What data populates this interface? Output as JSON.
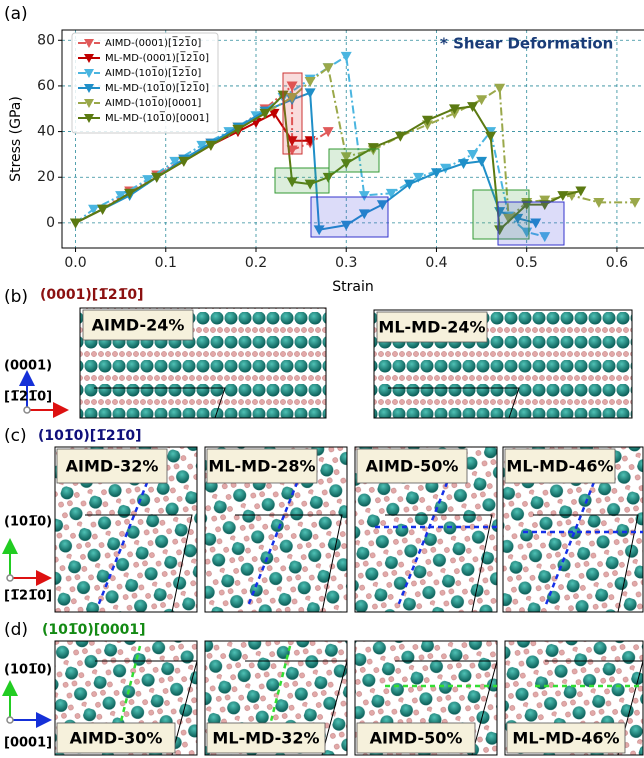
{
  "chart_data": {
    "type": "line",
    "panel_label": "(a)",
    "annotation": "* Shear Deformation",
    "x_label": "Strain",
    "y_label": "Stress (GPa)",
    "xlim": [
      -0.015,
      0.63
    ],
    "ylim": [
      -11,
      84.5
    ],
    "xticks": [
      {
        "value": 0,
        "label": "0.0"
      },
      0.1,
      0.2,
      0.3,
      0.4,
      0.5,
      0.6
    ],
    "yticks": [
      0,
      20,
      40,
      60,
      80
    ],
    "grid": true,
    "legend": "upper left",
    "series": [
      {
        "name": "AIMD-(0001)[1̅21̅0]",
        "color": "#e05a5a",
        "linestyle": "dashdot",
        "x": [
          0,
          0.03,
          0.06,
          0.09,
          0.12,
          0.15,
          0.18,
          0.21,
          0.24,
          0.24,
          0.26,
          0.28
        ],
        "values": [
          0,
          6,
          14,
          21,
          28,
          35,
          42,
          50,
          60,
          32,
          35,
          40
        ]
      },
      {
        "name": "ML-MD-(0001)[1̅21̅0]",
        "color": "#c00000",
        "linestyle": "solid",
        "x": [
          0,
          0.03,
          0.06,
          0.09,
          0.12,
          0.15,
          0.18,
          0.2,
          0.22,
          0.24,
          0.26
        ],
        "values": [
          0,
          6,
          13,
          20,
          27,
          34,
          40,
          44,
          48,
          36,
          36
        ]
      },
      {
        "name": "AIMD-(101̅0)[1̅21̅0]",
        "color": "#4ab5e0",
        "linestyle": "dashdot",
        "x": [
          0,
          0.02,
          0.05,
          0.08,
          0.11,
          0.14,
          0.17,
          0.2,
          0.23,
          0.26,
          0.28,
          0.3,
          0.32,
          0.35,
          0.38,
          0.41,
          0.44,
          0.46,
          0.48,
          0.5,
          0.52
        ],
        "values": [
          0,
          6,
          12,
          19,
          27,
          34,
          40,
          47,
          55,
          63,
          68,
          73,
          12,
          13,
          20,
          24,
          30,
          40,
          3,
          -4,
          -6
        ]
      },
      {
        "name": "ML-MD-(101̅0)[1̅21̅0]",
        "color": "#1f8fc8",
        "linestyle": "solid",
        "x": [
          0,
          0.03,
          0.06,
          0.09,
          0.12,
          0.15,
          0.18,
          0.21,
          0.24,
          0.26,
          0.27,
          0.3,
          0.32,
          0.34,
          0.37,
          0.4,
          0.43,
          0.45,
          0.47,
          0.49,
          0.51
        ],
        "values": [
          0,
          6,
          12,
          20,
          28,
          35,
          42,
          49,
          54,
          57,
          -3,
          -1,
          4,
          8,
          17,
          22,
          26,
          27,
          5,
          2,
          0
        ]
      },
      {
        "name": "AIMD-(101̅0)[0001]",
        "color": "#9aa84a",
        "linestyle": "dashdot",
        "x": [
          0,
          0.03,
          0.06,
          0.09,
          0.12,
          0.15,
          0.18,
          0.21,
          0.24,
          0.26,
          0.28,
          0.3,
          0.33,
          0.36,
          0.39,
          0.42,
          0.45,
          0.47,
          0.48,
          0.5,
          0.52,
          0.55,
          0.58,
          0.62
        ],
        "values": [
          0,
          6,
          13,
          20,
          27,
          34,
          41,
          48,
          55,
          62,
          68,
          29,
          32,
          38,
          43,
          48,
          54,
          59,
          2,
          9,
          10,
          12,
          9,
          9
        ]
      },
      {
        "name": "ML-MD-(101̅0)[0001]",
        "color": "#5b7a12",
        "linestyle": "solid",
        "x": [
          0,
          0.03,
          0.06,
          0.09,
          0.12,
          0.15,
          0.18,
          0.21,
          0.23,
          0.24,
          0.26,
          0.28,
          0.3,
          0.33,
          0.36,
          0.39,
          0.42,
          0.44,
          0.46,
          0.47,
          0.5,
          0.52,
          0.54,
          0.56
        ],
        "values": [
          0,
          6,
          13,
          20,
          27,
          34,
          41,
          48,
          56,
          18,
          17,
          20,
          26,
          33,
          38,
          45,
          50,
          51,
          38,
          -3,
          8,
          8,
          12,
          14
        ]
      }
    ]
  },
  "panel_b": {
    "label": "(b)",
    "title": "(0001)[1̅21̅0]",
    "axis_up": "(0001)",
    "axis_right": "[1̅21̅0]",
    "images": [
      "AIMD-24%",
      "ML-MD-24%"
    ]
  },
  "panel_c": {
    "label": "(c)",
    "title": "(101̅0)[1̅21̅0]",
    "axis_up": "(101̅0)",
    "axis_right": "[1̅21̅0]",
    "images": [
      "AIMD-32%",
      "ML-MD-28%",
      "AIMD-50%",
      "ML-MD-46%"
    ]
  },
  "panel_d": {
    "label": "(d)",
    "title": "(101̅0)[0001]",
    "axis_up": "(101̅0)",
    "axis_right": "[0001]",
    "images": [
      "AIMD-30%",
      "ML-MD-32%",
      "AIMD-50%",
      "ML-MD-46%"
    ]
  }
}
